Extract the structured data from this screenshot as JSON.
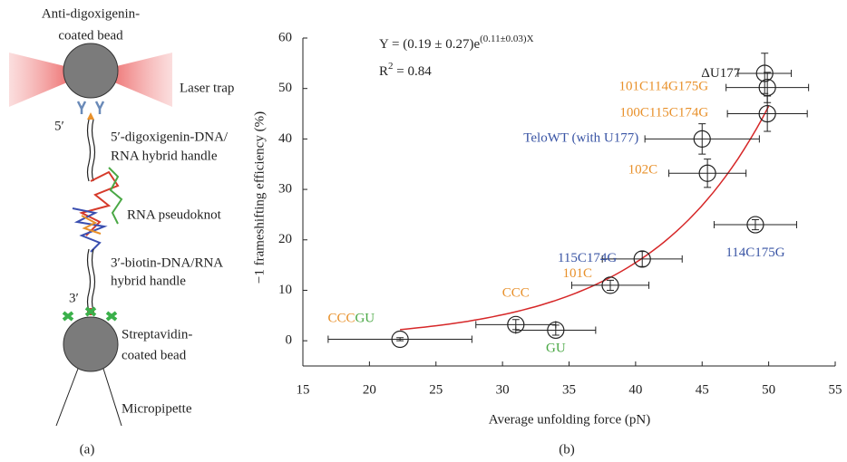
{
  "panel_a": {
    "bead_top": [
      "Anti-digoxigenin-",
      "coated bead"
    ],
    "laser": "Laser trap",
    "five_prime": "5′",
    "handle_top": [
      "5′-digoxigenin-DNA/",
      "RNA hybrid handle"
    ],
    "pseudoknot": "RNA pseudoknot",
    "handle_bottom": [
      "3′-biotin-DNA/RNA",
      "hybrid handle"
    ],
    "three_prime": "3′",
    "bead_bottom": [
      "Streptavidin-",
      "coated bead"
    ],
    "pipette": "Micropipette",
    "caption": "(a)"
  },
  "chart_data": {
    "type": "scatter",
    "caption": "(b)",
    "xlabel": "Average unfolding force (pN)",
    "ylabel": "−1 frameshifting efficiency (%)",
    "equation": {
      "lhs": "Y = (0.19 ± 0.27)e",
      "exponent": "(0.11±0.03)X"
    },
    "r2": {
      "base": "R",
      "sup": "2",
      "rest": " = 0.84"
    },
    "x": [
      22.3,
      31,
      34,
      38.1,
      40.5,
      45.4,
      45,
      49,
      49.9,
      49.9,
      49.7
    ],
    "values": [
      0.3,
      3.2,
      2.1,
      11,
      16.2,
      33.2,
      40,
      23,
      45,
      50.2,
      53
    ],
    "xerr": [
      5.4,
      3,
      3,
      2.9,
      3,
      2.9,
      4.3,
      3.1,
      3,
      3.1,
      2
    ],
    "yerr": [
      0.3,
      1,
      1,
      1,
      1.5,
      2.8,
      3,
      1,
      3.5,
      3,
      4
    ],
    "labels": [
      [
        {
          "text": "CCC",
          "color": "#e8902a"
        },
        {
          "text": "GU",
          "color": "#4aa845"
        }
      ],
      [
        {
          "text": "CCC",
          "color": "#e8902a"
        }
      ],
      [
        {
          "text": "GU",
          "color": "#4aa845"
        }
      ],
      [
        {
          "text": "101C",
          "color": "#e8902a"
        }
      ],
      [
        {
          "text": "115C174G",
          "color": "#3a55a5"
        }
      ],
      [
        {
          "text": "102C",
          "color": "#e8902a"
        }
      ],
      [
        {
          "text": "TeloWT (with U177)",
          "color": "#3a55a5"
        }
      ],
      [
        {
          "text": "114C175G",
          "color": "#3a55a5"
        }
      ],
      [
        {
          "text": "100C115C174G",
          "color": "#e8902a"
        }
      ],
      [
        {
          "text": "101C114G175G",
          "color": "#e8902a"
        }
      ],
      [
        {
          "text": "ΔU177",
          "color": "#222222"
        }
      ]
    ],
    "fit": {
      "a": 0.19,
      "b": 0.11,
      "x_range": [
        22.3,
        50
      ],
      "color": "#d62728"
    },
    "xlim": [
      15,
      55
    ],
    "xticks": [
      15,
      20,
      25,
      30,
      35,
      40,
      45,
      50,
      55
    ],
    "ylim": [
      -5,
      60
    ],
    "yticks": [
      0,
      10,
      20,
      30,
      40,
      50,
      60
    ]
  }
}
